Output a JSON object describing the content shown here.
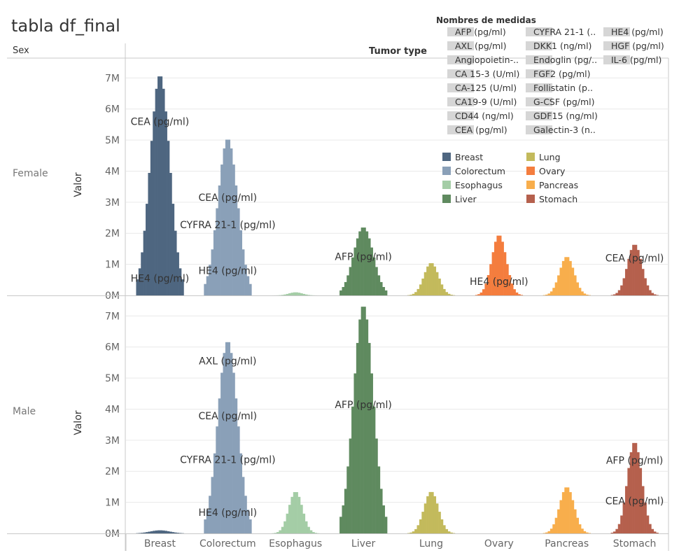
{
  "chart_data": {
    "type": "bar",
    "title": "tabla df_final",
    "column_header": "Tumor type",
    "row_header": "Sex",
    "ylabel": "Valor",
    "yticks": [
      "0M",
      "1M",
      "2M",
      "3M",
      "4M",
      "5M",
      "6M",
      "7M"
    ],
    "ylim": [
      0,
      7.3
    ],
    "categories": [
      "Breast",
      "Colorectum",
      "Esophagus",
      "Liver",
      "Lung",
      "Ovary",
      "Pancreas",
      "Stomach"
    ],
    "colors": {
      "Breast": "#4e6680",
      "Colorectum": "#8aa0b8",
      "Esophagus": "#a4cda6",
      "Liver": "#5f8a5f",
      "Lung": "#c3ba5c",
      "Ovary": "#f47d3e",
      "Pancreas": "#f8ae4c",
      "Stomach": "#b5604d"
    },
    "panels": [
      {
        "sex": "Female",
        "peaks": [
          7.1,
          5.05,
          0.1,
          2.2,
          1.05,
          1.95,
          1.25,
          1.65
        ],
        "labels": [
          {
            "category": "Breast",
            "text": "CEA (pg/ml)",
            "y": 5.6
          },
          {
            "category": "Breast",
            "text": "HE4 (pg/ml)",
            "y": 0.55
          },
          {
            "category": "Colorectum",
            "text": "CEA (pg/ml)",
            "y": 3.15
          },
          {
            "category": "Colorectum",
            "text": "CYFRA 21-1 (pg/ml)",
            "y": 2.28
          },
          {
            "category": "Colorectum",
            "text": "HE4 (pg/ml)",
            "y": 0.8
          },
          {
            "category": "Liver",
            "text": "AFP (pg/ml)",
            "y": 1.25
          },
          {
            "category": "Ovary",
            "text": "HE4 (pg/ml)",
            "y": 0.45
          },
          {
            "category": "Stomach",
            "text": "CEA (pg/ml)",
            "y": 1.2
          }
        ]
      },
      {
        "sex": "Male",
        "peaks": [
          0.1,
          6.2,
          1.35,
          7.35,
          1.35,
          0,
          1.5,
          2.95
        ],
        "labels": [
          {
            "category": "Colorectum",
            "text": "AXL (pg/ml)",
            "y": 5.55
          },
          {
            "category": "Colorectum",
            "text": "CEA (pg/ml)",
            "y": 3.78
          },
          {
            "category": "Colorectum",
            "text": "CYFRA 21-1 (pg/ml)",
            "y": 2.38
          },
          {
            "category": "Colorectum",
            "text": "HE4 (pg/ml)",
            "y": 0.68
          },
          {
            "category": "Liver",
            "text": "AFP (pg/ml)",
            "y": 4.15
          },
          {
            "category": "Stomach",
            "text": "AFP (pg/ml)",
            "y": 2.35
          },
          {
            "category": "Stomach",
            "text": "CEA (pg/ml)",
            "y": 1.05
          }
        ]
      }
    ],
    "measures_legend": {
      "title": "Nombres de medidas",
      "columns": [
        [
          "AFP (pg/ml)",
          "AXL (pg/ml)",
          "Angiopoietin-..",
          "CA 15-3 (U/ml)",
          "CA-125 (U/ml)",
          "CA19-9 (U/ml)",
          "CD44 (ng/ml)",
          "CEA (pg/ml)"
        ],
        [
          "CYFRA 21-1 (..",
          "DKK1 (ng/ml)",
          "Endoglin (pg/..",
          "FGF2 (pg/ml)",
          "Follistatin (p..",
          "G-CSF (pg/ml)",
          "GDF15 (ng/ml)",
          "Galectin-3 (n.."
        ],
        [
          "HE4 (pg/ml)",
          "HGF (pg/ml)",
          "IL-6 (pg/ml)"
        ]
      ]
    },
    "color_legend": {
      "columns": [
        [
          "Breast",
          "Colorectum",
          "Esophagus",
          "Liver"
        ],
        [
          "Lung",
          "Ovary",
          "Pancreas",
          "Stomach"
        ]
      ]
    }
  }
}
